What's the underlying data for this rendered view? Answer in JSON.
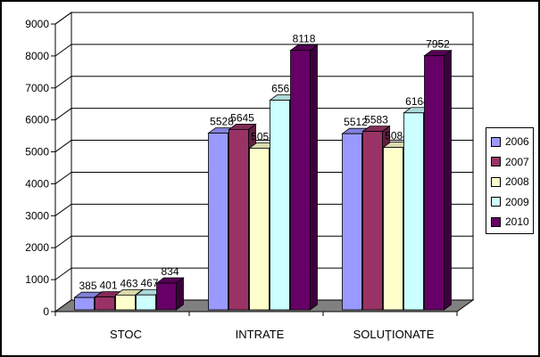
{
  "chart_data": {
    "type": "bar",
    "title": "",
    "xlabel": "",
    "ylabel": "",
    "categories": [
      "STOC",
      "INTRATE",
      "SOLUŢIONATE"
    ],
    "ylim": [
      0,
      9000
    ],
    "yticks": [
      0,
      1000,
      2000,
      3000,
      4000,
      5000,
      6000,
      7000,
      8000,
      9000
    ],
    "grid": true,
    "legend_position": "right",
    "series": [
      {
        "name": "2006",
        "color": "#9999ff",
        "values": [
          385,
          5528,
          5512
        ]
      },
      {
        "name": "2007",
        "color": "#993366",
        "values": [
          401,
          5645,
          5583
        ]
      },
      {
        "name": "2008",
        "color": "#ffffcc",
        "values": [
          463,
          5058,
          5084
        ]
      },
      {
        "name": "2009",
        "color": "#ccffff",
        "values": [
          467,
          6561,
          6164
        ]
      },
      {
        "name": "2010",
        "color": "#660066",
        "values": [
          834,
          8118,
          7952
        ]
      }
    ]
  }
}
